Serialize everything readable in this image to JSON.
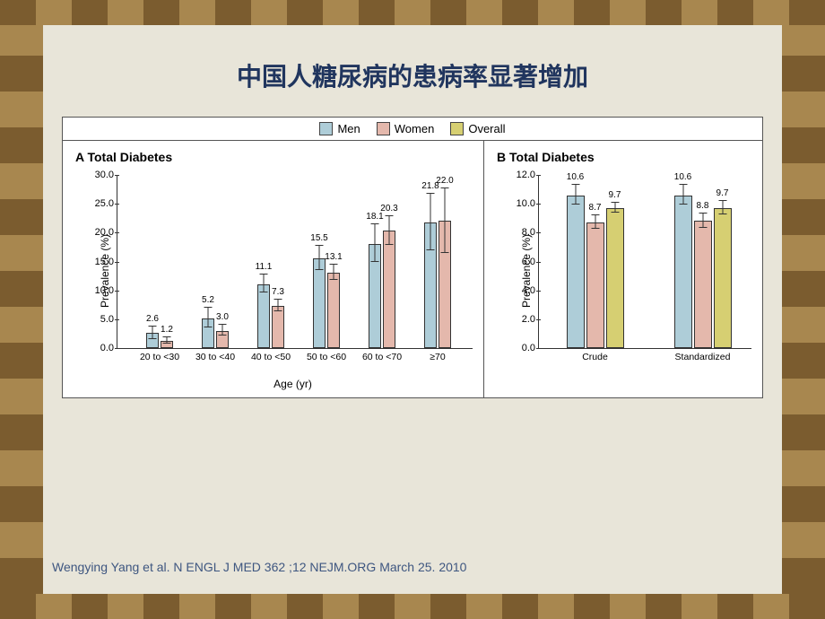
{
  "slide": {
    "title": "中国人糖尿病的患病率显著增加",
    "citation": "Wengying Yang et al. N ENGL J MED  362 ;12 NEJM.ORG March 25. 2010"
  },
  "legend": {
    "items": [
      {
        "label": "Men",
        "color": "#aecdd8"
      },
      {
        "label": "Women",
        "color": "#e4b8ac"
      },
      {
        "label": "Overall",
        "color": "#d6cf72"
      }
    ],
    "border_color": "#444444"
  },
  "panelA": {
    "title": "A  Total Diabetes",
    "type": "grouped-bar-with-error",
    "ylabel": "Prevalence (%)",
    "xlabel": "Age (yr)",
    "ylim": [
      0,
      30
    ],
    "ytick_step": 5,
    "categories": [
      "20 to <30",
      "30 to <40",
      "40 to <50",
      "50 to <60",
      "60 to <70",
      "≥70"
    ],
    "series_colors": [
      "#aecdd8",
      "#e4b8ac"
    ],
    "groups": [
      {
        "bars": [
          {
            "value": 2.6,
            "err": 1.2,
            "label": "2.6"
          },
          {
            "value": 1.2,
            "err": 0.6,
            "label": "1.2"
          }
        ]
      },
      {
        "bars": [
          {
            "value": 5.2,
            "err": 1.8,
            "label": "5.2"
          },
          {
            "value": 3.0,
            "err": 1.0,
            "label": "3.0"
          }
        ]
      },
      {
        "bars": [
          {
            "value": 11.1,
            "err": 1.6,
            "label": "11.1"
          },
          {
            "value": 7.3,
            "err": 1.1,
            "label": "7.3"
          }
        ]
      },
      {
        "bars": [
          {
            "value": 15.5,
            "err": 2.2,
            "label": "15.5"
          },
          {
            "value": 13.1,
            "err": 1.4,
            "label": "13.1"
          }
        ]
      },
      {
        "bars": [
          {
            "value": 18.1,
            "err": 3.4,
            "label": "18.1"
          },
          {
            "value": 20.3,
            "err": 2.6,
            "label": "20.3"
          }
        ]
      },
      {
        "bars": [
          {
            "value": 21.8,
            "err": 5.0,
            "label": "21.8"
          },
          {
            "value": 22.0,
            "err": 5.6,
            "label": "22.0"
          }
        ]
      }
    ]
  },
  "panelB": {
    "title": "B  Total Diabetes",
    "type": "grouped-bar-with-error",
    "ylabel": "Prevalence (%)",
    "ylim": [
      0,
      12
    ],
    "ytick_step": 2,
    "categories": [
      "Crude",
      "Standardized"
    ],
    "series_colors": [
      "#aecdd8",
      "#e4b8ac",
      "#d6cf72"
    ],
    "groups": [
      {
        "bars": [
          {
            "value": 10.6,
            "err": 0.7,
            "label": "10.6"
          },
          {
            "value": 8.7,
            "err": 0.5,
            "label": "8.7"
          },
          {
            "value": 9.7,
            "err": 0.4,
            "label": "9.7"
          }
        ]
      },
      {
        "bars": [
          {
            "value": 10.6,
            "err": 0.7,
            "label": "10.6"
          },
          {
            "value": 8.8,
            "err": 0.5,
            "label": "8.8"
          },
          {
            "value": 9.7,
            "err": 0.5,
            "label": "9.7"
          }
        ]
      }
    ]
  },
  "style": {
    "background": "#e8e5d9",
    "title_color": "#20355e",
    "axis_color": "#333333",
    "font_family": "Verdana",
    "title_fontsize": 28,
    "label_fontsize": 12,
    "tick_fontsize": 11,
    "value_fontsize": 10,
    "citation_color": "#3e5680"
  }
}
